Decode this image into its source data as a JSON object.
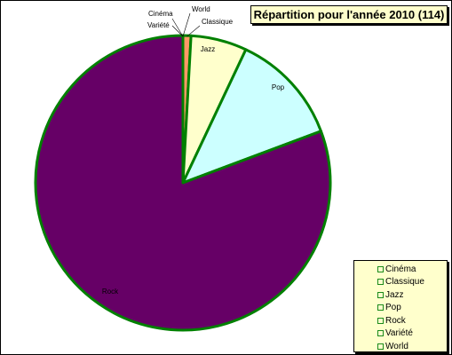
{
  "chart_data": {
    "type": "pie",
    "title": "Répartition pour l'année 2010 (114)",
    "categories": [
      "Cinéma",
      "Classique",
      "Jazz",
      "Pop",
      "Rock",
      "Variété",
      "World"
    ],
    "values": [
      0,
      1,
      7,
      14,
      92,
      0,
      0
    ],
    "colors": [
      "#ffffff",
      "#ff9966",
      "#ffffcc",
      "#ccffff",
      "#660066",
      "#ffffff",
      "#ffffff"
    ],
    "slice_border_color": "#008000",
    "legend_position": "bottom-right",
    "legend_background": "#ffffcc",
    "title_background": "#ffffcc"
  }
}
